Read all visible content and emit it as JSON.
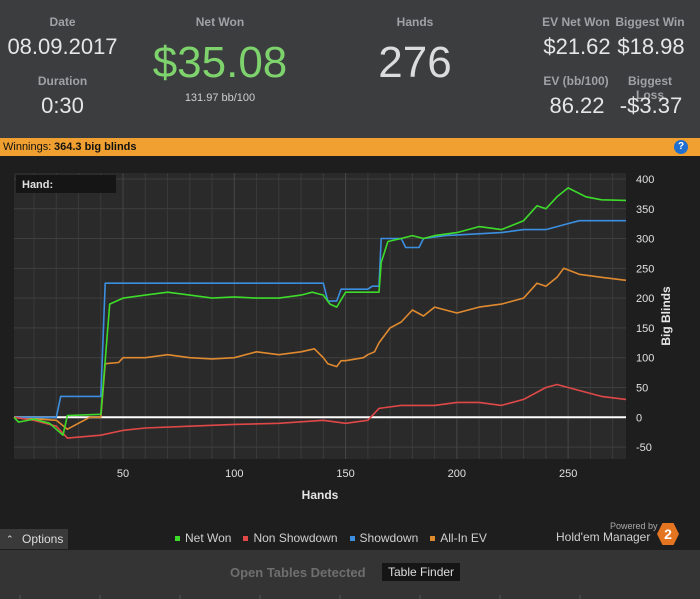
{
  "stats": {
    "date": {
      "label": "Date",
      "value": "08.09.2017"
    },
    "duration": {
      "label": "Duration",
      "value": "0:30"
    },
    "net_won": {
      "label": "Net Won",
      "value": "$35.08",
      "sub": "131.97 bb/100"
    },
    "hands": {
      "label": "Hands",
      "value": "276"
    },
    "ev_net_won": {
      "label": "EV Net Won",
      "value": "$21.62"
    },
    "biggest_win": {
      "label": "Biggest Win",
      "value": "$18.98"
    },
    "ev_bb100": {
      "label": "EV (bb/100)",
      "value": "86.22"
    },
    "biggest_loss": {
      "label": "Biggest Loss",
      "value": "-$3.37"
    }
  },
  "banner": {
    "label": "Winnings:",
    "value": "364.3 big blinds",
    "help_icon": "?"
  },
  "chart_hand_label": "Hand:",
  "chart_data": {
    "type": "line",
    "xlabel": "Hands",
    "ylabel": "Big Blinds",
    "xlim": [
      1,
      276
    ],
    "ylim": [
      -70,
      410
    ],
    "xticks": [
      50,
      100,
      150,
      200,
      250
    ],
    "yticks": [
      -50,
      0,
      50,
      100,
      150,
      200,
      250,
      300,
      350,
      400
    ],
    "grid": true,
    "zero_line": true,
    "series": [
      {
        "name": "Net Won",
        "color": "#3ddc2a",
        "points": [
          [
            1,
            0
          ],
          [
            3,
            -8
          ],
          [
            10,
            -3
          ],
          [
            17,
            -10
          ],
          [
            23,
            -30
          ],
          [
            25,
            3
          ],
          [
            40,
            5
          ],
          [
            42,
            95
          ],
          [
            44,
            190
          ],
          [
            50,
            200
          ],
          [
            60,
            205
          ],
          [
            70,
            210
          ],
          [
            80,
            205
          ],
          [
            90,
            200
          ],
          [
            100,
            202
          ],
          [
            110,
            200
          ],
          [
            120,
            200
          ],
          [
            130,
            205
          ],
          [
            135,
            210
          ],
          [
            140,
            205
          ],
          [
            143,
            190
          ],
          [
            146,
            185
          ],
          [
            150,
            210
          ],
          [
            165,
            210
          ],
          [
            166,
            260
          ],
          [
            169,
            295
          ],
          [
            175,
            300
          ],
          [
            180,
            305
          ],
          [
            185,
            300
          ],
          [
            190,
            305
          ],
          [
            200,
            310
          ],
          [
            210,
            320
          ],
          [
            220,
            315
          ],
          [
            230,
            330
          ],
          [
            236,
            355
          ],
          [
            240,
            350
          ],
          [
            245,
            370
          ],
          [
            250,
            385
          ],
          [
            258,
            370
          ],
          [
            265,
            365
          ],
          [
            276,
            364
          ]
        ]
      },
      {
        "name": "Non Showdown",
        "color": "#e04848",
        "points": [
          [
            1,
            0
          ],
          [
            10,
            -5
          ],
          [
            20,
            -15
          ],
          [
            25,
            -35
          ],
          [
            40,
            -30
          ],
          [
            50,
            -22
          ],
          [
            60,
            -18
          ],
          [
            80,
            -15
          ],
          [
            100,
            -12
          ],
          [
            120,
            -10
          ],
          [
            140,
            -5
          ],
          [
            150,
            -10
          ],
          [
            160,
            -5
          ],
          [
            165,
            15
          ],
          [
            175,
            20
          ],
          [
            190,
            20
          ],
          [
            200,
            25
          ],
          [
            210,
            25
          ],
          [
            220,
            20
          ],
          [
            230,
            30
          ],
          [
            240,
            50
          ],
          [
            245,
            55
          ],
          [
            255,
            45
          ],
          [
            265,
            35
          ],
          [
            276,
            30
          ]
        ]
      },
      {
        "name": "Showdown",
        "color": "#3c8fe0",
        "points": [
          [
            1,
            0
          ],
          [
            20,
            0
          ],
          [
            22,
            35
          ],
          [
            40,
            35
          ],
          [
            42,
            225
          ],
          [
            140,
            225
          ],
          [
            142,
            195
          ],
          [
            146,
            195
          ],
          [
            148,
            215
          ],
          [
            160,
            215
          ],
          [
            162,
            220
          ],
          [
            165,
            220
          ],
          [
            166,
            300
          ],
          [
            175,
            300
          ],
          [
            177,
            285
          ],
          [
            183,
            285
          ],
          [
            185,
            300
          ],
          [
            195,
            305
          ],
          [
            220,
            310
          ],
          [
            230,
            315
          ],
          [
            240,
            315
          ],
          [
            245,
            320
          ],
          [
            250,
            325
          ],
          [
            255,
            330
          ],
          [
            276,
            330
          ]
        ]
      },
      {
        "name": "All-In EV",
        "color": "#e08a30",
        "points": [
          [
            1,
            0
          ],
          [
            20,
            -5
          ],
          [
            25,
            -20
          ],
          [
            35,
            0
          ],
          [
            40,
            0
          ],
          [
            42,
            90
          ],
          [
            48,
            92
          ],
          [
            50,
            100
          ],
          [
            60,
            100
          ],
          [
            70,
            105
          ],
          [
            80,
            100
          ],
          [
            90,
            98
          ],
          [
            100,
            100
          ],
          [
            110,
            110
          ],
          [
            120,
            105
          ],
          [
            130,
            110
          ],
          [
            136,
            115
          ],
          [
            140,
            100
          ],
          [
            142,
            90
          ],
          [
            146,
            85
          ],
          [
            148,
            95
          ],
          [
            150,
            95
          ],
          [
            158,
            100
          ],
          [
            160,
            105
          ],
          [
            163,
            110
          ],
          [
            165,
            125
          ],
          [
            170,
            150
          ],
          [
            175,
            160
          ],
          [
            180,
            180
          ],
          [
            185,
            170
          ],
          [
            190,
            185
          ],
          [
            200,
            175
          ],
          [
            210,
            185
          ],
          [
            220,
            190
          ],
          [
            230,
            200
          ],
          [
            236,
            225
          ],
          [
            240,
            220
          ],
          [
            245,
            235
          ],
          [
            248,
            250
          ],
          [
            255,
            240
          ],
          [
            265,
            235
          ],
          [
            276,
            230
          ]
        ]
      }
    ]
  },
  "options_label": "Options",
  "legend": [
    {
      "label": "Net Won",
      "color": "#3ddc2a"
    },
    {
      "label": "Non Showdown",
      "color": "#e04848"
    },
    {
      "label": "Showdown",
      "color": "#3c8fe0"
    },
    {
      "label": "All-In EV",
      "color": "#e08a30"
    }
  ],
  "branding": {
    "powered": "Powered by",
    "name": "Hold'em Manager",
    "logo": "2"
  },
  "footer": {
    "title": "Open Tables Detected",
    "button": "Table Finder"
  }
}
